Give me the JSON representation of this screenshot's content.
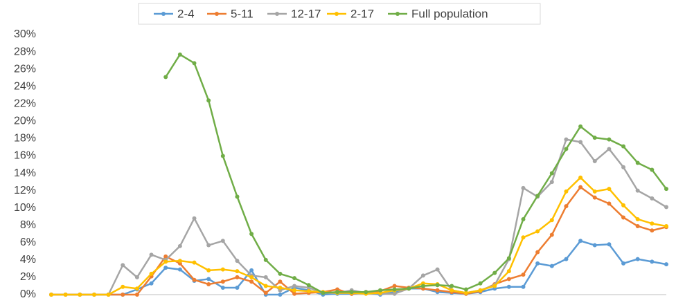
{
  "chart_data": {
    "type": "line",
    "categories": [
      null,
      null,
      null,
      null,
      null,
      null,
      null,
      null,
      null,
      null,
      null,
      null,
      null,
      null,
      null,
      null,
      null,
      null,
      null,
      null,
      null,
      null,
      null,
      null,
      null,
      null,
      null,
      null,
      null,
      null,
      null,
      null,
      null,
      null,
      null,
      null,
      null,
      null,
      null,
      null,
      null,
      null,
      null,
      null
    ],
    "ylim": [
      0,
      30
    ],
    "yticks": [
      {
        "value": 0,
        "label": "0%"
      },
      {
        "value": 2,
        "label": "2%"
      },
      {
        "value": 4,
        "label": "4%"
      },
      {
        "value": 6,
        "label": "6%"
      },
      {
        "value": 8,
        "label": "8%"
      },
      {
        "value": 10,
        "label": "10%"
      },
      {
        "value": 12,
        "label": "12%"
      },
      {
        "value": 14,
        "label": "14%"
      },
      {
        "value": 16,
        "label": "16%"
      },
      {
        "value": 18,
        "label": "18%"
      },
      {
        "value": 20,
        "label": "20%"
      },
      {
        "value": 22,
        "label": "22%"
      },
      {
        "value": 24,
        "label": "24%"
      },
      {
        "value": 26,
        "label": "26%"
      },
      {
        "value": 28,
        "label": "28%"
      },
      {
        "value": 30,
        "label": "30%"
      }
    ],
    "grid": false,
    "legend": "top",
    "series": [
      {
        "name": "2-4",
        "color": "#5b9bd5",
        "values": [
          0,
          0,
          0,
          0,
          0,
          0,
          0.6,
          1.3,
          3.1,
          2.9,
          1.6,
          1.8,
          0.8,
          0.8,
          2.8,
          0,
          0,
          0.8,
          0.5,
          0,
          0.1,
          0.1,
          0.2,
          0,
          0.3,
          0.7,
          0.7,
          0.3,
          0.2,
          0.1,
          0.3,
          0.7,
          0.9,
          0.9,
          3.6,
          3.3,
          4.1,
          6.2,
          5.7,
          5.8,
          3.6,
          4.1,
          3.8,
          3.5
        ]
      },
      {
        "name": "5-11",
        "color": "#ed7d31",
        "values": [
          0,
          0,
          0,
          0,
          0,
          0,
          0,
          2.1,
          4.4,
          3.6,
          1.7,
          1.2,
          1.5,
          2.0,
          1.5,
          0.2,
          1.5,
          0.1,
          0.2,
          0.3,
          0.6,
          0.1,
          0.3,
          0.4,
          1.0,
          0.8,
          0.7,
          0.5,
          0.3,
          0.1,
          0.4,
          1.2,
          1.8,
          2.3,
          4.9,
          6.9,
          10.2,
          12.4,
          11.2,
          10.5,
          8.9,
          7.9,
          7.4,
          7.8
        ]
      },
      {
        "name": "12-17",
        "color": "#a5a5a5",
        "values": [
          0,
          0,
          0,
          0,
          0,
          3.4,
          2.0,
          4.6,
          4.0,
          5.6,
          8.8,
          5.7,
          6.2,
          3.9,
          2.2,
          2.0,
          0.5,
          1.0,
          0.8,
          0.2,
          0.2,
          0.5,
          0.2,
          0.1,
          0.1,
          0.7,
          2.2,
          2.9,
          0.5,
          0.2,
          0.5,
          1.1,
          4.1,
          12.3,
          11.3,
          13.0,
          17.9,
          17.6,
          15.4,
          16.8,
          14.7,
          12.0,
          11.1,
          10.1
        ]
      },
      {
        "name": "2-17",
        "color": "#ffc000",
        "values": [
          0,
          0,
          0,
          0,
          0,
          0.9,
          0.7,
          2.4,
          3.8,
          3.9,
          3.7,
          2.8,
          2.9,
          2.7,
          2.0,
          1.0,
          0.8,
          0.5,
          0.4,
          0.3,
          0.2,
          0.2,
          0.1,
          0.2,
          0.5,
          0.7,
          1.3,
          1.2,
          0.5,
          0.2,
          0.5,
          1.0,
          2.7,
          6.6,
          7.3,
          8.6,
          11.9,
          13.5,
          11.9,
          12.2,
          10.3,
          8.7,
          8.2,
          7.9
        ]
      },
      {
        "name": "Full population",
        "color": "#70ad47",
        "values": [
          null,
          null,
          null,
          null,
          null,
          null,
          null,
          null,
          25.1,
          27.7,
          26.7,
          22.4,
          16,
          11.3,
          7,
          4,
          2.4,
          1.9,
          1.1,
          0.2,
          0.3,
          0.3,
          0.3,
          0.5,
          0.6,
          0.7,
          1.0,
          1.1,
          1.0,
          0.6,
          1.3,
          2.5,
          4.2,
          8.7,
          11.4,
          14,
          16.8,
          19.4,
          18.1,
          17.9,
          17.1,
          15.2,
          14.4,
          12.2
        ]
      }
    ]
  }
}
